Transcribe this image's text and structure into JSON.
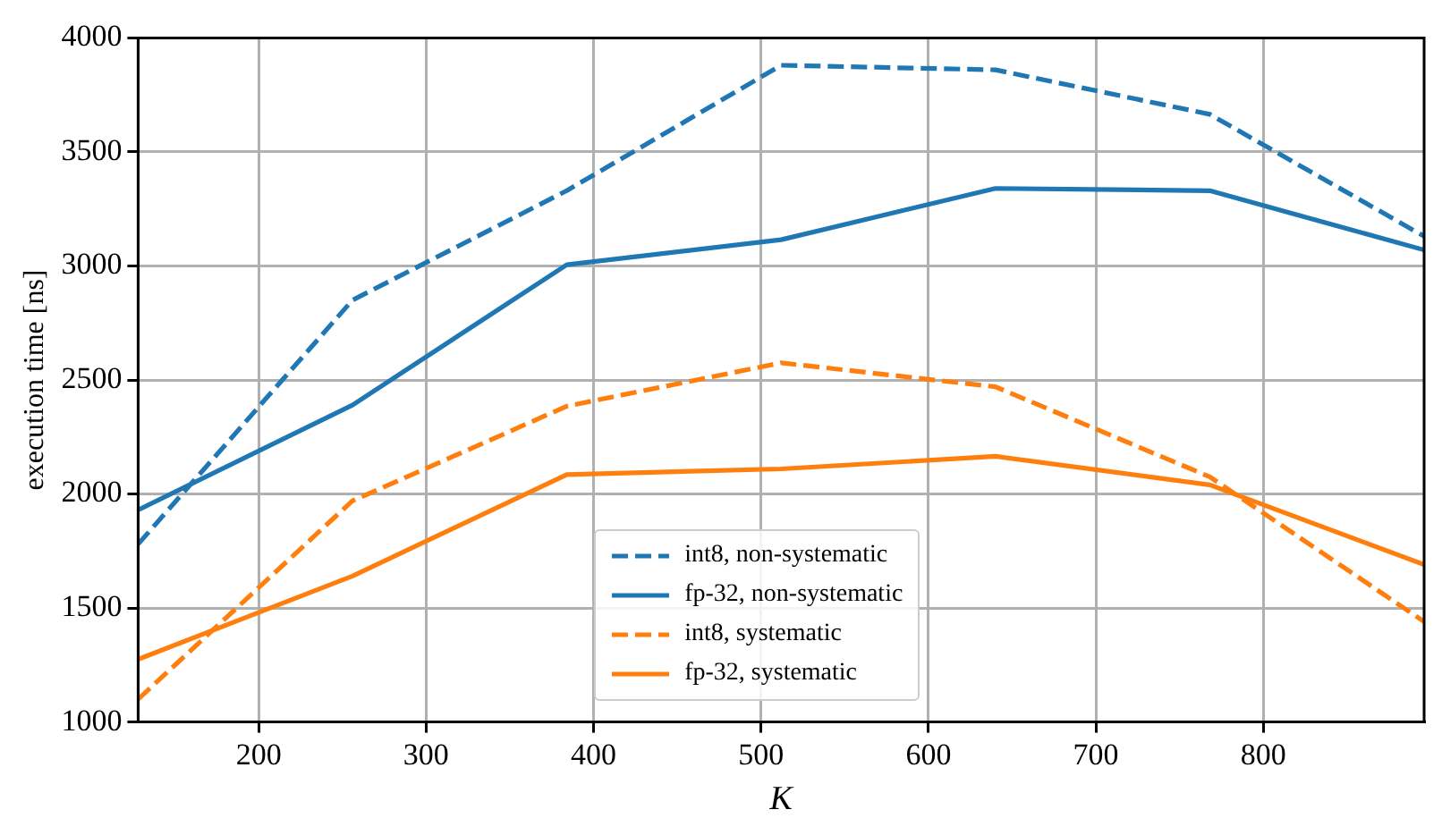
{
  "chart_data": {
    "type": "line",
    "xlabel": "K",
    "ylabel": "execution time [ns]",
    "x": [
      128,
      256,
      384,
      512,
      640,
      768,
      896
    ],
    "series": [
      {
        "name": "int8, non-systematic",
        "color": "#1f77b4",
        "line_style": "dashed",
        "values": [
          1780,
          2850,
          3330,
          3880,
          3860,
          3665,
          3130
        ]
      },
      {
        "name": "fp-32, non-systematic",
        "color": "#1f77b4",
        "line_style": "solid",
        "values": [
          1930,
          2390,
          3005,
          3115,
          3340,
          3330,
          3070
        ]
      },
      {
        "name": "int8, systematic",
        "color": "#ff7f0e",
        "line_style": "dashed",
        "values": [
          1100,
          1970,
          2385,
          2575,
          2470,
          2075,
          1440
        ]
      },
      {
        "name": "fp-32, systematic",
        "color": "#ff7f0e",
        "line_style": "solid",
        "values": [
          1275,
          1640,
          2085,
          2110,
          2165,
          2040,
          1690
        ]
      }
    ],
    "xlim": [
      128,
      896
    ],
    "xticks": [
      200,
      300,
      400,
      500,
      600,
      700,
      800
    ],
    "ylim": [
      1000,
      4000
    ],
    "yticks": [
      1000,
      1500,
      2000,
      2500,
      3000,
      3500,
      4000
    ],
    "grid": true,
    "legend": "bottom",
    "marker": "none"
  }
}
